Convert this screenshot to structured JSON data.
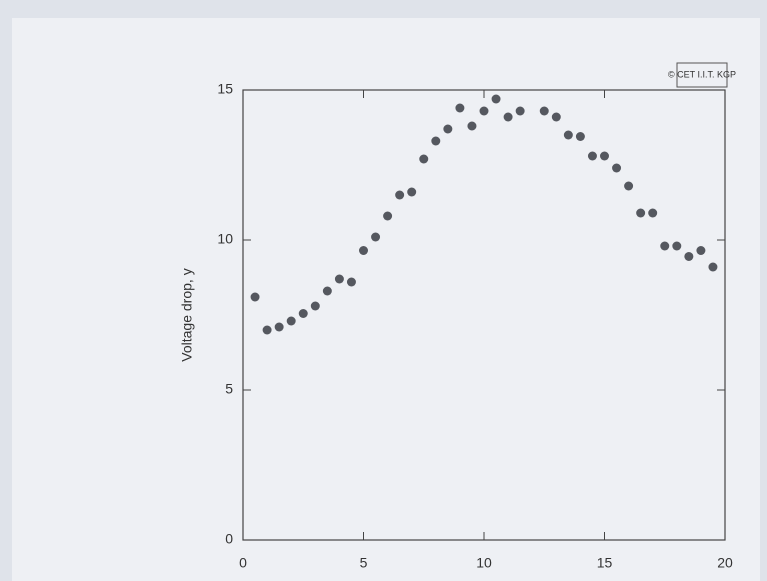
{
  "chart_data": {
    "type": "scatter",
    "y_label": "Voltage drop, y",
    "watermark": "© CET I.I.T. KGP",
    "x": [
      0.5,
      1,
      1.5,
      2,
      2.5,
      3,
      3.5,
      4,
      4.5,
      5,
      5.5,
      6,
      6.5,
      7,
      7.5,
      8,
      8.5,
      9,
      9.5,
      10,
      10.5,
      11,
      11.5,
      12.5,
      13,
      13.5,
      14,
      14.5,
      15,
      15.5,
      16,
      16.5,
      17,
      17.5,
      18,
      18.5,
      19,
      19.5
    ],
    "values": [
      8.1,
      7.0,
      7.1,
      7.3,
      7.55,
      7.8,
      8.3,
      8.7,
      8.6,
      9.65,
      10.1,
      10.8,
      11.5,
      11.6,
      12.7,
      13.3,
      13.7,
      14.4,
      13.8,
      14.3,
      14.7,
      14.1,
      14.3,
      14.3,
      14.1,
      13.5,
      13.45,
      12.8,
      12.8,
      12.4,
      11.8,
      10.9,
      10.9,
      9.8,
      9.8,
      9.45,
      9.65,
      9.1
    ],
    "color": "#55585f",
    "xlim": [
      0,
      20
    ],
    "ylim": [
      0,
      15
    ],
    "xticks": [
      0,
      5,
      10,
      15,
      20
    ],
    "yticks": [
      0,
      5,
      10,
      15
    ]
  }
}
